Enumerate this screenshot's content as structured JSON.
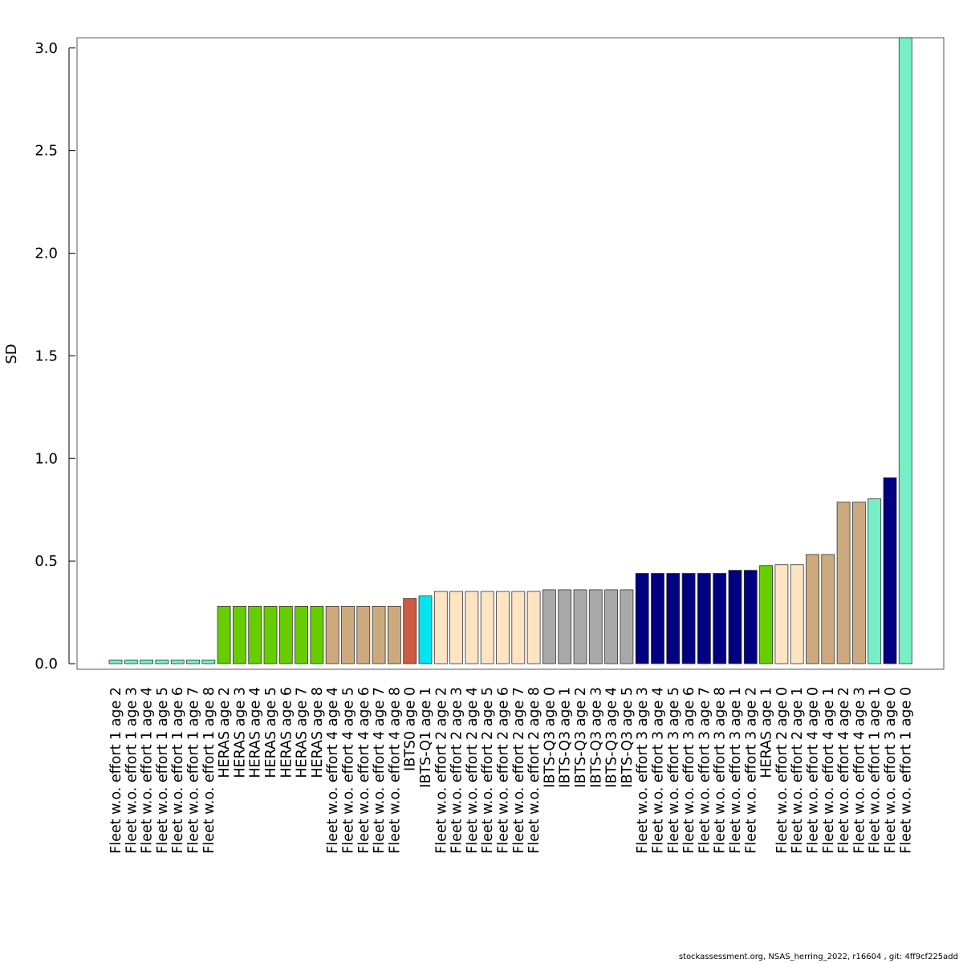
{
  "chart_data": {
    "type": "bar",
    "ylabel": "SD",
    "xlabel": "",
    "ylim": [
      0,
      3.05
    ],
    "yticks": [
      0.0,
      0.5,
      1.0,
      1.5,
      2.0,
      2.5,
      3.0
    ],
    "ytick_labels": [
      "0.0",
      "0.5",
      "1.0",
      "1.5",
      "2.0",
      "2.5",
      "3.0"
    ],
    "grid": false,
    "categories": [
      "Fleet w.o. effort 1 age 2",
      "Fleet w.o. effort 1 age 3",
      "Fleet w.o. effort 1 age 4",
      "Fleet w.o. effort 1 age 5",
      "Fleet w.o. effort 1 age 6",
      "Fleet w.o. effort 1 age 7",
      "Fleet w.o. effort 1 age 8",
      "HERAS age 2",
      "HERAS age 3",
      "HERAS age 4",
      "HERAS age 5",
      "HERAS age 6",
      "HERAS age 7",
      "HERAS age 8",
      "Fleet w.o. effort 4 age 4",
      "Fleet w.o. effort 4 age 5",
      "Fleet w.o. effort 4 age 6",
      "Fleet w.o. effort 4 age 7",
      "Fleet w.o. effort 4 age 8",
      "IBTS0 age 0",
      "IBTS-Q1 age 1",
      "Fleet w.o. effort 2 age 2",
      "Fleet w.o. effort 2 age 3",
      "Fleet w.o. effort 2 age 4",
      "Fleet w.o. effort 2 age 5",
      "Fleet w.o. effort 2 age 6",
      "Fleet w.o. effort 2 age 7",
      "Fleet w.o. effort 2 age 8",
      "IBTS-Q3 age 0",
      "IBTS-Q3 age 1",
      "IBTS-Q3 age 2",
      "IBTS-Q3 age 3",
      "IBTS-Q3 age 4",
      "IBTS-Q3 age 5",
      "Fleet w.o. effort 3 age 3",
      "Fleet w.o. effort 3 age 4",
      "Fleet w.o. effort 3 age 5",
      "Fleet w.o. effort 3 age 6",
      "Fleet w.o. effort 3 age 7",
      "Fleet w.o. effort 3 age 8",
      "Fleet w.o. effort 3 age 1",
      "Fleet w.o. effort 3 age 2",
      "HERAS age 1",
      "Fleet w.o. effort 2 age 0",
      "Fleet w.o. effort 2 age 1",
      "Fleet w.o. effort 4 age 0",
      "Fleet w.o. effort 4 age 1",
      "Fleet w.o. effort 4 age 2",
      "Fleet w.o. effort 4 age 3",
      "Fleet w.o. effort 1 age 1",
      "Fleet w.o. effort 3 age 0",
      "Fleet w.o. effort 1 age 0"
    ],
    "values": [
      0.018,
      0.018,
      0.018,
      0.018,
      0.018,
      0.018,
      0.018,
      0.28,
      0.28,
      0.28,
      0.28,
      0.28,
      0.28,
      0.28,
      0.28,
      0.28,
      0.28,
      0.28,
      0.28,
      0.318,
      0.33,
      0.352,
      0.352,
      0.352,
      0.352,
      0.352,
      0.352,
      0.352,
      0.36,
      0.36,
      0.36,
      0.36,
      0.36,
      0.36,
      0.44,
      0.44,
      0.44,
      0.44,
      0.44,
      0.44,
      0.455,
      0.455,
      0.478,
      0.482,
      0.482,
      0.532,
      0.532,
      0.787,
      0.787,
      0.803,
      0.906,
      3.05
    ],
    "bar_colors": [
      "#76EEC6",
      "#76EEC6",
      "#76EEC6",
      "#76EEC6",
      "#76EEC6",
      "#76EEC6",
      "#76EEC6",
      "#66CD00",
      "#66CD00",
      "#66CD00",
      "#66CD00",
      "#66CD00",
      "#66CD00",
      "#66CD00",
      "#CDAA7D",
      "#CDAA7D",
      "#CDAA7D",
      "#CDAA7D",
      "#CDAA7D",
      "#CD5C45",
      "#00E5EE",
      "#FFE4C4",
      "#FFE4C4",
      "#FFE4C4",
      "#FFE4C4",
      "#FFE4C4",
      "#FFE4C4",
      "#FFE4C4",
      "#A9A9A9",
      "#A9A9A9",
      "#A9A9A9",
      "#A9A9A9",
      "#A9A9A9",
      "#A9A9A9",
      "#000080",
      "#000080",
      "#000080",
      "#000080",
      "#000080",
      "#000080",
      "#000080",
      "#000080",
      "#66CD00",
      "#FFE4C4",
      "#FFE4C4",
      "#CDAA7D",
      "#CDAA7D",
      "#CDAA7D",
      "#CDAA7D",
      "#76EEC6",
      "#000080",
      "#76EEC6"
    ]
  },
  "footer": "stockassessment.org, NSAS_herring_2022, r16604 , git: 4ff9cf225add"
}
